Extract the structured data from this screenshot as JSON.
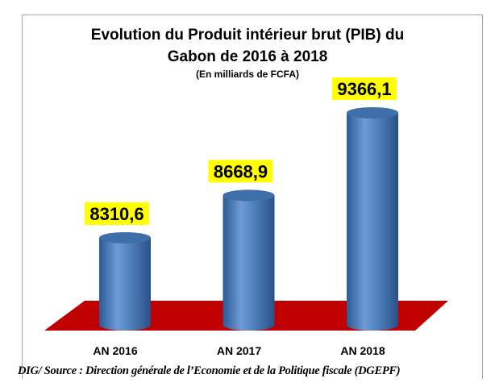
{
  "chart_data": {
    "type": "bar",
    "title": "Evolution du Produit intérieur brut (PIB) du",
    "title_line2": "Gabon de 2016 à 2018",
    "subtitle": "(En milliards de FCFA)",
    "categories": [
      "AN 2016",
      "AN 2017",
      "AN 2018"
    ],
    "values": [
      8310.6,
      8668.9,
      9366.1
    ],
    "data_labels": [
      "8310,6",
      "8668,9",
      "9366,1"
    ],
    "xlabel": "",
    "ylabel": "",
    "ylim": [
      7575,
      9900
    ],
    "grid": false,
    "colors": {
      "bar": "#4f81bd",
      "floor": "#c00000",
      "label_bg": "#ffff00"
    }
  },
  "source": "DIG/ Source : Direction générale de l’Economie et de la Politique fiscale (DGEPF)"
}
